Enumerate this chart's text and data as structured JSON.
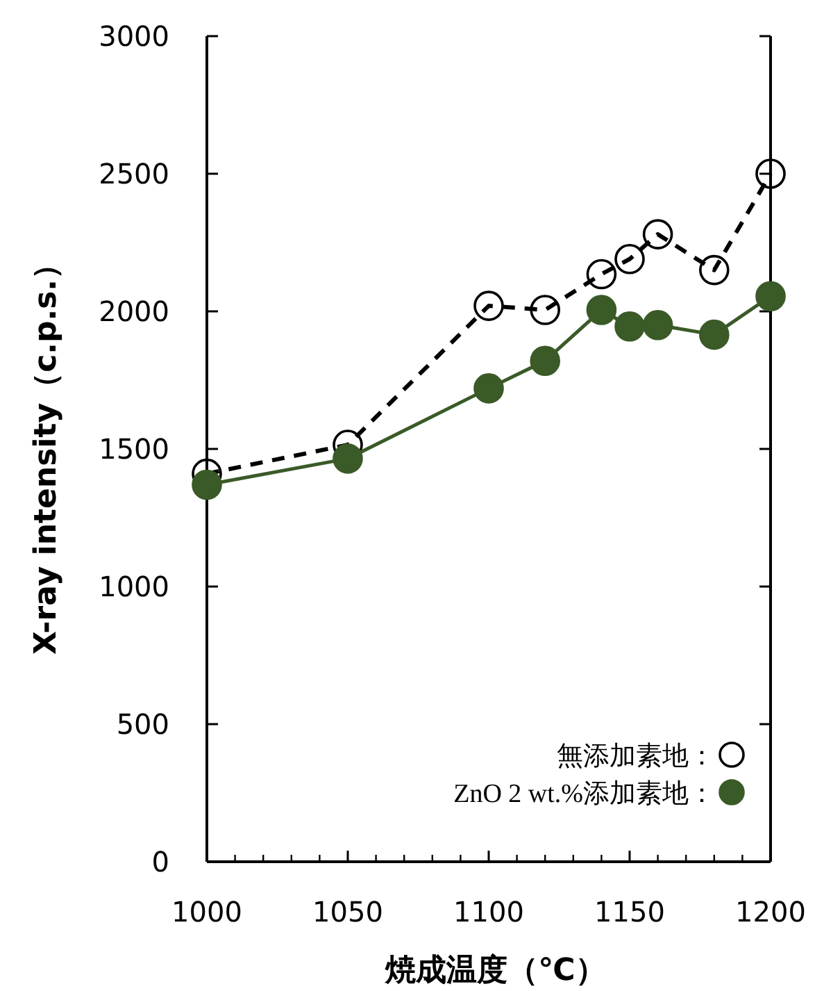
{
  "chart_data": {
    "type": "line",
    "xlabel": "焼成温度（℃）",
    "ylabel": "X-ray intensity（c.p.s.）",
    "x": [
      1000,
      1050,
      1100,
      1120,
      1140,
      1150,
      1160,
      1180,
      1200
    ],
    "series": [
      {
        "name": "無添加素地：",
        "color": "#000000",
        "line_style": "dashed",
        "values": [
          1410,
          1515,
          2020,
          2005,
          2135,
          2190,
          2280,
          2150,
          2500
        ]
      },
      {
        "name": "ZnO 2 wt.%添加素地：",
        "color": "#3a5a27",
        "line_style": "solid",
        "values": [
          1370,
          1465,
          1720,
          1820,
          2005,
          1945,
          1950,
          1915,
          2055
        ]
      }
    ],
    "marker": "circle",
    "legend": "bottom right",
    "xlim": [
      1000,
      1200
    ],
    "xticks": [
      1000,
      1050,
      1100,
      1150,
      1200
    ],
    "ylim": [
      0,
      3000
    ],
    "yticks": [
      0,
      500,
      1000,
      1500,
      2000,
      2500,
      3000
    ],
    "grid": false
  }
}
